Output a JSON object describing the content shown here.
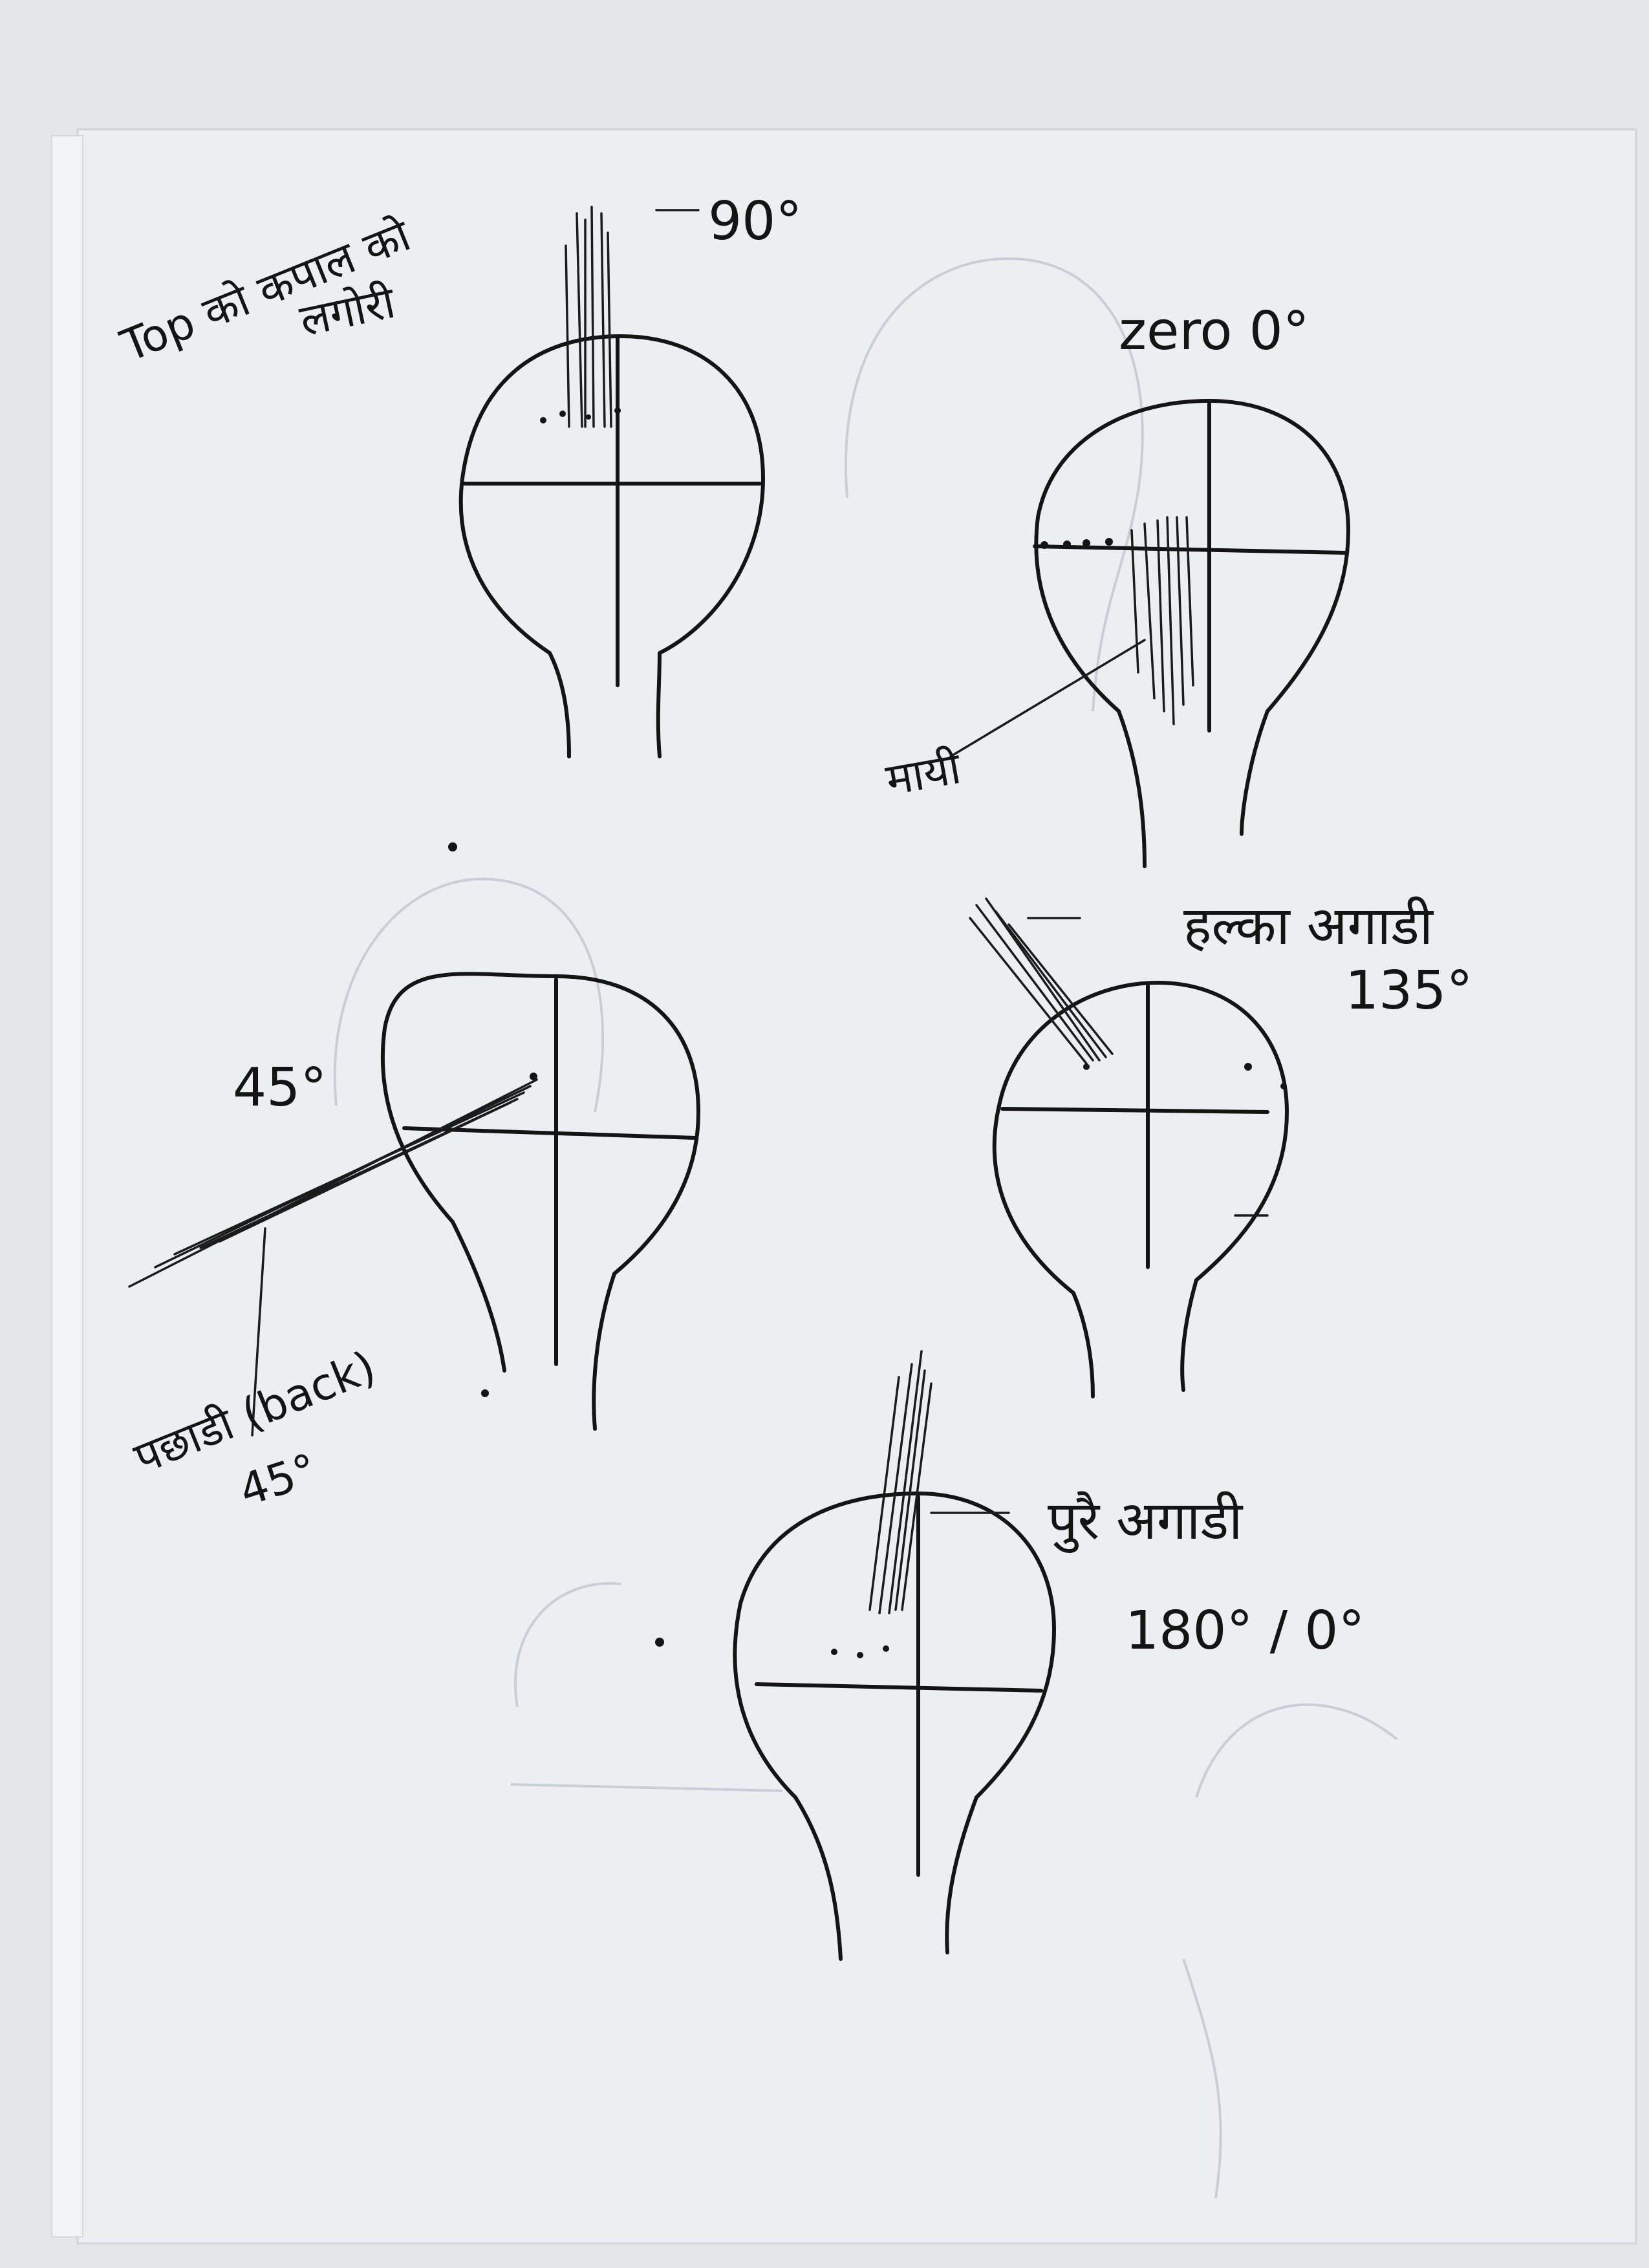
{
  "labels": {
    "top_note_line1": "Top को कपाल को",
    "top_note_line2": "लगोरी",
    "deg_90": "90°",
    "zero": "zero 0°",
    "mayo": "मायी",
    "halka_agadi": "हल्का अगाडी",
    "deg_135": "135°",
    "deg_45": "45°",
    "pachhadi_back": "पछाडी (back)",
    "deg_45b": "45°",
    "purai_agadi": "पुरै अगाडी",
    "deg_180": "180° / 0°"
  }
}
